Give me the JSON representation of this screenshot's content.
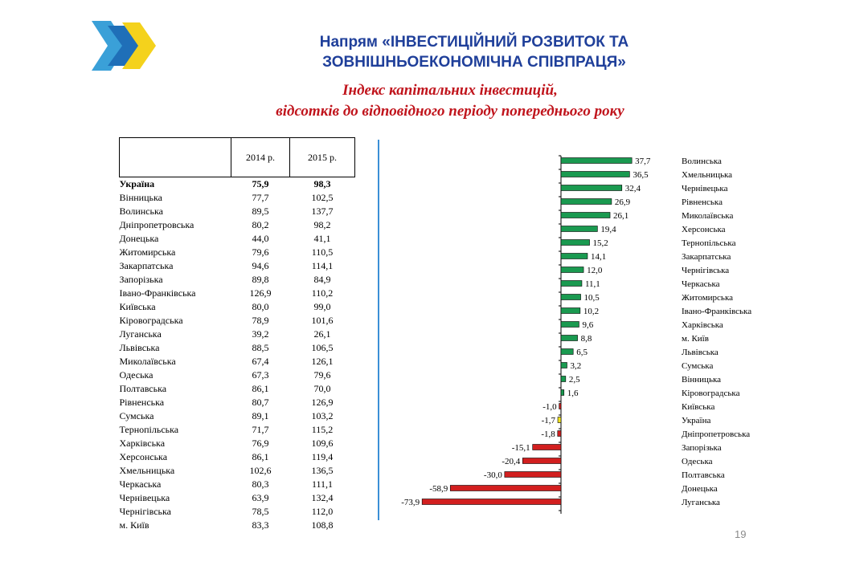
{
  "header": {
    "title_line1": "Напрям «ІНВЕСТИЦІЙНИЙ РОЗВИТОК ТА",
    "title_line2": "ЗОВНІШНЬОЕКОНОМІЧНА СПІВПРАЦЯ»",
    "subtitle_line1": "Індекс капітальних інвестицій,",
    "subtitle_line2": "відсотків до відповідного періоду попереднього року"
  },
  "table": {
    "columns": [
      "",
      "2014 р.",
      "2015 р."
    ],
    "rows": [
      {
        "name": "Україна",
        "y2014": "75,9",
        "y2015": "98,3"
      },
      {
        "name": "Вінницька",
        "y2014": "77,7",
        "y2015": "102,5"
      },
      {
        "name": "Волинська",
        "y2014": "89,5",
        "y2015": "137,7"
      },
      {
        "name": "Дніпропетровська",
        "y2014": "80,2",
        "y2015": "98,2"
      },
      {
        "name": "Донецька",
        "y2014": "44,0",
        "y2015": "41,1"
      },
      {
        "name": "Житомирська",
        "y2014": "79,6",
        "y2015": "110,5"
      },
      {
        "name": "Закарпатська",
        "y2014": "94,6",
        "y2015": "114,1"
      },
      {
        "name": "Запорізька",
        "y2014": "89,8",
        "y2015": "84,9"
      },
      {
        "name": "Івано-Франківська",
        "y2014": "126,9",
        "y2015": "110,2"
      },
      {
        "name": "Київська",
        "y2014": "80,0",
        "y2015": "99,0"
      },
      {
        "name": "Кіровоградська",
        "y2014": "78,9",
        "y2015": "101,6"
      },
      {
        "name": "Луганська",
        "y2014": "39,2",
        "y2015": "26,1"
      },
      {
        "name": "Львівська",
        "y2014": "88,5",
        "y2015": "106,5"
      },
      {
        "name": "Миколаївська",
        "y2014": "67,4",
        "y2015": "126,1"
      },
      {
        "name": "Одеська",
        "y2014": "67,3",
        "y2015": "79,6"
      },
      {
        "name": "Полтавська",
        "y2014": "86,1",
        "y2015": "70,0"
      },
      {
        "name": "Рівненська",
        "y2014": "80,7",
        "y2015": "126,9"
      },
      {
        "name": "Сумська",
        "y2014": "89,1",
        "y2015": "103,2"
      },
      {
        "name": "Тернопільська",
        "y2014": "71,7",
        "y2015": "115,2"
      },
      {
        "name": "Харківська",
        "y2014": "76,9",
        "y2015": "109,6"
      },
      {
        "name": "Херсонська",
        "y2014": "86,1",
        "y2015": "119,4"
      },
      {
        "name": "Хмельницька",
        "y2014": "102,6",
        "y2015": "136,5"
      },
      {
        "name": "Черкаська",
        "y2014": "80,3",
        "y2015": "111,1"
      },
      {
        "name": "Чернівецька",
        "y2014": "63,9",
        "y2015": "132,4"
      },
      {
        "name": "Чернігівська",
        "y2014": "78,5",
        "y2015": "112,0"
      },
      {
        "name": "м. Київ",
        "y2014": "83,3",
        "y2015": "108,8"
      }
    ]
  },
  "chart_data": {
    "type": "bar",
    "orientation": "horizontal",
    "categories": [
      "Волинська",
      "Хмельницька",
      "Чернівецька",
      "Рівненська",
      "Миколаївська",
      "Херсонська",
      "Тернопільська",
      "Закарпатська",
      "Чернігівська",
      "Черкаська",
      "Житомирська",
      "Івано-Франківська",
      "Харківська",
      "м. Київ",
      "Львівська",
      "Сумська",
      "Вінницька",
      "Кіровоградська",
      "Київська",
      "Україна",
      "Дніпропетровська",
      "Запорізька",
      "Одеська",
      "Полтавська",
      "Донецька",
      "Луганська"
    ],
    "values": [
      37.7,
      36.5,
      32.4,
      26.9,
      26.1,
      19.4,
      15.2,
      14.1,
      12.0,
      11.1,
      10.5,
      10.2,
      9.6,
      8.8,
      6.5,
      3.2,
      2.5,
      1.6,
      -1.0,
      -1.7,
      -1.8,
      -15.1,
      -20.4,
      -30.0,
      -58.9,
      -73.9
    ],
    "labels": [
      "37,7",
      "36,5",
      "32,4",
      "26,9",
      "26,1",
      "19,4",
      "15,2",
      "14,1",
      "12,0",
      "11,1",
      "10,5",
      "10,2",
      "9,6",
      "8,8",
      "6,5",
      "3,2",
      "2,5",
      "1,6",
      "-1,0",
      "-1,7",
      "-1,8",
      "-15,1",
      "-20,4",
      "-30,0",
      "-58,9",
      "-73,9"
    ],
    "highlight_category": "Україна",
    "colors": {
      "positive": "#1a9a50",
      "negative": "#d21f1f",
      "highlight": "#f2e41e",
      "stroke": "#000000"
    },
    "xlim": [
      -73.9,
      37.7
    ]
  },
  "footer": {
    "page_number": "19"
  }
}
